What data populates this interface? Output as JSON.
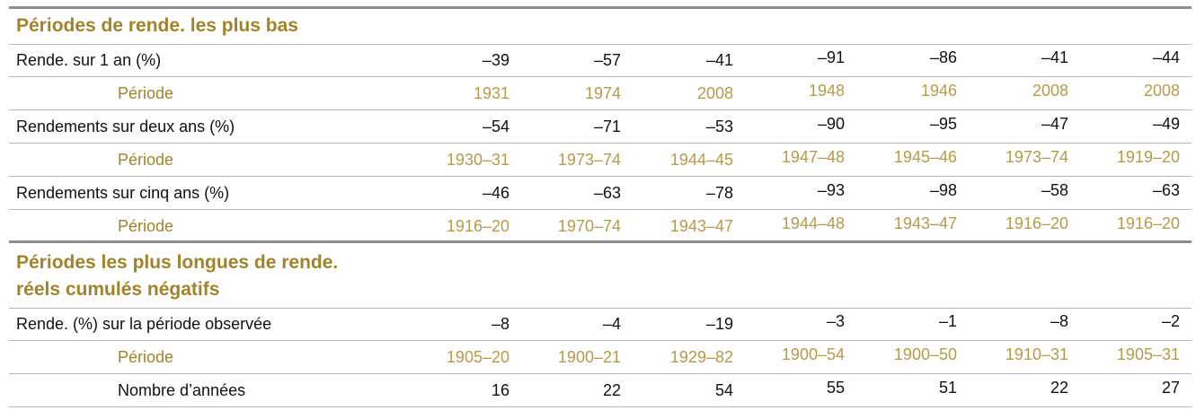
{
  "section1": {
    "title": "Périodes de rende. les plus bas",
    "rows": [
      {
        "label": "Rende. sur 1 an (%)",
        "type": "main",
        "values": [
          "–39",
          "–57",
          "–41",
          "–91",
          "–86",
          "–41",
          "–44"
        ]
      },
      {
        "label": "Période",
        "type": "sub",
        "values": [
          "1931",
          "1974",
          "2008",
          "1948",
          "1946",
          "2008",
          "2008"
        ]
      },
      {
        "label": "Rendements sur deux ans (%)",
        "type": "main",
        "values": [
          "–54",
          "–71",
          "–53",
          "–90",
          "–95",
          "–47",
          "–49"
        ]
      },
      {
        "label": "Période",
        "type": "sub",
        "values": [
          "1930–31",
          "1973–74",
          "1944–45",
          "1947–48",
          "1945–46",
          "1973–74",
          "1919–20"
        ]
      },
      {
        "label": "Rendements sur cinq ans (%)",
        "type": "main",
        "values": [
          "–46",
          "–63",
          "–78",
          "–93",
          "–98",
          "–58",
          "–63"
        ]
      },
      {
        "label": "Période",
        "type": "sub",
        "values": [
          "1916–20",
          "1970–74",
          "1943–47",
          "1944–48",
          "1943–47",
          "1916–20",
          "1916–20"
        ]
      }
    ]
  },
  "section2": {
    "title_line1": "Périodes les plus longues de rende.",
    "title_line2": "réels cumulés négatifs",
    "rows": [
      {
        "label": "Rende. (%) sur la période observée",
        "type": "main",
        "values": [
          "–8",
          "–4",
          "–19",
          "–3",
          "–1",
          "–8",
          "–2"
        ]
      },
      {
        "label": "Période",
        "type": "sub",
        "values": [
          "1905–20",
          "1900–21",
          "1929–82",
          "1900–54",
          "1900–50",
          "1910–31",
          "1905–31"
        ]
      },
      {
        "label": "Nombre d’années",
        "type": "subdark",
        "values": [
          "16",
          "22",
          "54",
          "55",
          "51",
          "22",
          "27"
        ]
      }
    ]
  },
  "colors": {
    "gold": "#a0832a",
    "gold_light": "#b69a4a",
    "rule": "#8c8c8c"
  }
}
